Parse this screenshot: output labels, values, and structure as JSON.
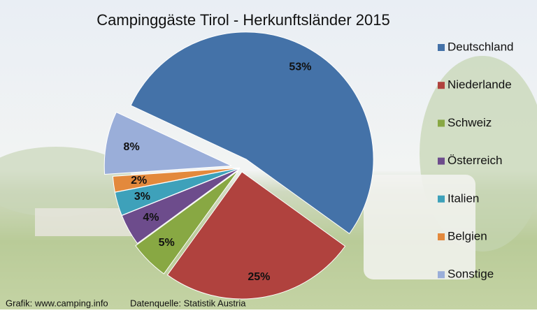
{
  "chart_data": {
    "type": "pie",
    "title": "Campinggäste Tirol - Herkunftsländer 2015",
    "categories": [
      "Deutschland",
      "Niederlande",
      "Schweiz",
      "Österreich",
      "Italien",
      "Belgien",
      "Sonstige"
    ],
    "values": [
      53,
      25,
      5,
      4,
      3,
      2,
      8
    ],
    "value_labels": [
      "53%",
      "25%",
      "5%",
      "4%",
      "3%",
      "2%",
      "8%"
    ],
    "colors": [
      "#4472a8",
      "#b0423e",
      "#88a843",
      "#6d4c8c",
      "#3ea1ba",
      "#e3893c",
      "#9aaed9"
    ],
    "credit": "Grafik: www.camping.info",
    "source": "Datenquelle: Statistik Austria"
  }
}
